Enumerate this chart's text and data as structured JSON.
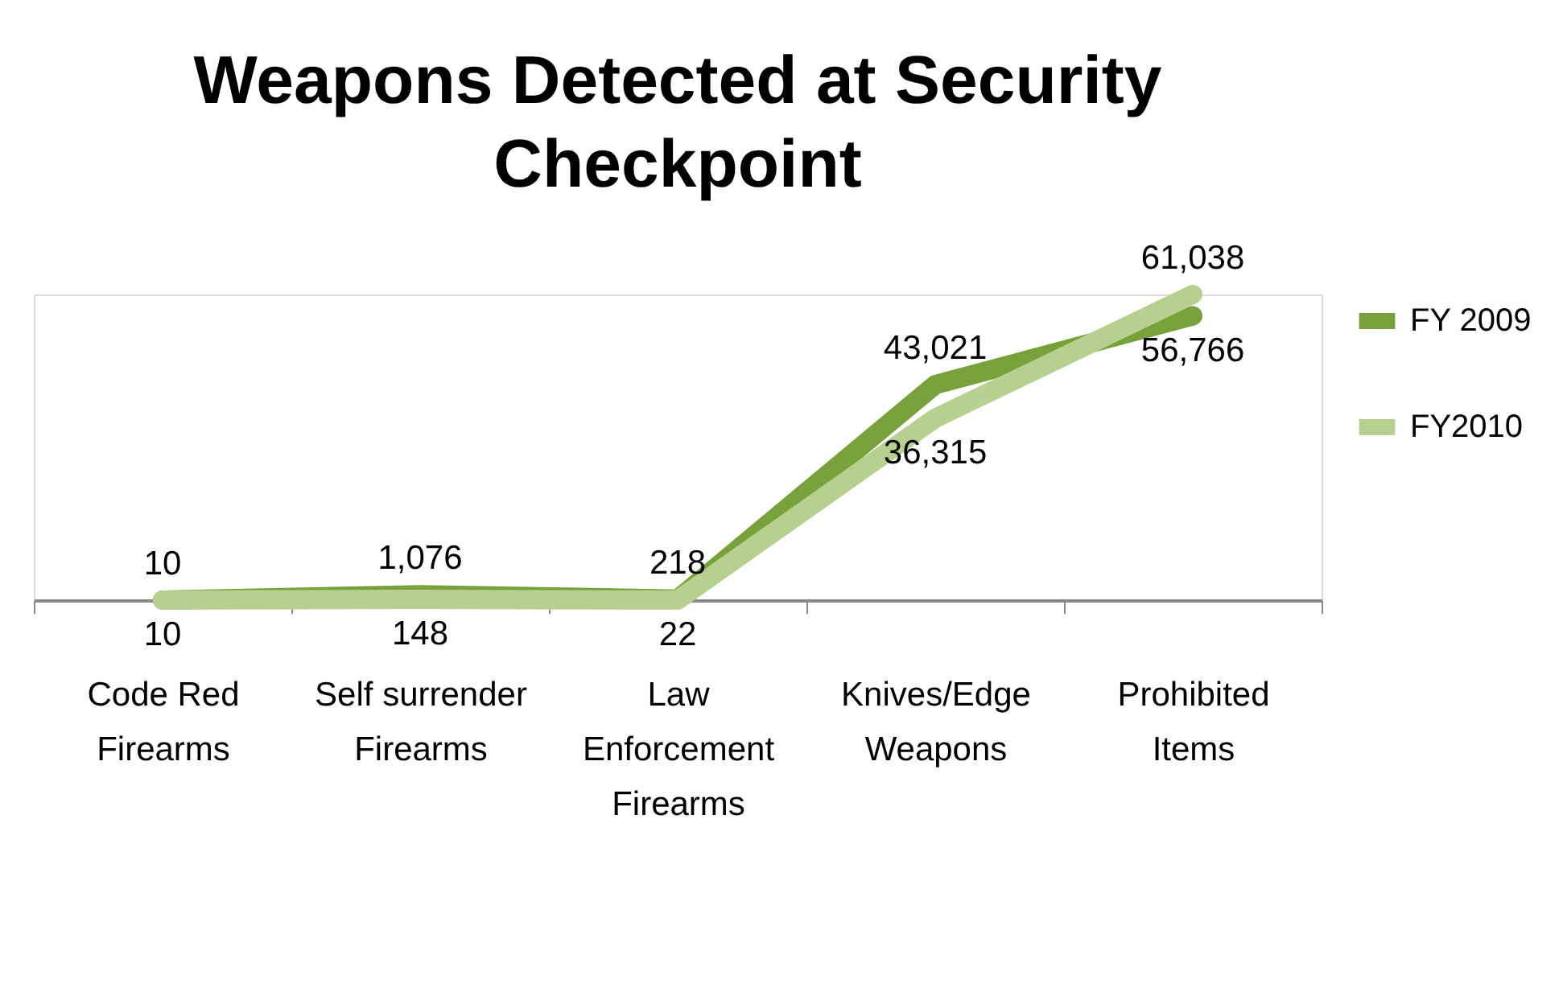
{
  "chart_data": {
    "type": "line",
    "title": "Weapons Detected at Security Checkpoint",
    "categories": [
      "Code Red Firearms",
      "Self surrender Firearms",
      "Law Enforcement Firearms",
      "Knives/Edge Weapons",
      "Prohibited Items"
    ],
    "series": [
      {
        "name": "FY 2009",
        "color": "#77a23b",
        "values": [
          10,
          1076,
          218,
          43021,
          56766
        ],
        "value_labels": [
          "10",
          "1,076",
          "218",
          "43,021",
          "56,766"
        ]
      },
      {
        "name": "FY2010",
        "color": "#b5d08f",
        "values": [
          10,
          148,
          22,
          36315,
          61038
        ],
        "value_labels": [
          "10",
          "148",
          "22",
          "36,315",
          "61,038"
        ]
      }
    ],
    "legend": "right",
    "grid": false,
    "marker": "none",
    "line_style": "solid"
  }
}
